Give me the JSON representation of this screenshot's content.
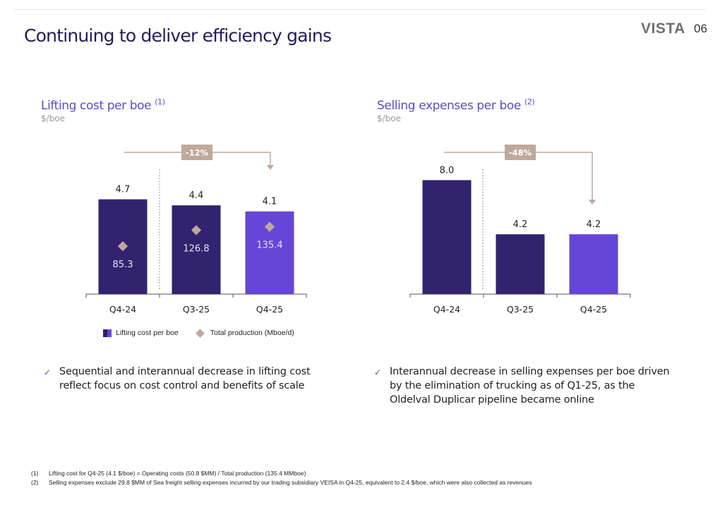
{
  "header": {
    "title": "Continuing to deliver efficiency gains",
    "logo": "VISTA",
    "page_number": "06"
  },
  "colors": {
    "dark_bar": "#32236f",
    "accent_bar": "#6646d6",
    "diamond": "#bfa99a",
    "badge": "#bfa99a",
    "title": "#281a5c",
    "subtitle": "#5b4bc4"
  },
  "chart_data": [
    {
      "type": "bar",
      "title": "Lifting cost per boe",
      "title_footnote": "(1)",
      "unit": "$/boe",
      "categories": [
        "Q4-24",
        "Q3-25",
        "Q4-25"
      ],
      "series": [
        {
          "name": "Lifting cost per boe",
          "values": [
            4.7,
            4.4,
            4.1
          ],
          "value_labels": [
            "4.7",
            "4.4",
            "4.1"
          ]
        },
        {
          "name": "Total production (Mboe/d)",
          "values": [
            85.3,
            126.8,
            135.4
          ],
          "value_labels": [
            "85.3",
            "126.8",
            "135.4"
          ],
          "marker": "diamond"
        }
      ],
      "change_badge": "-12%",
      "change_from": "Q4-24",
      "change_to": "Q4-25",
      "legend": [
        "Lifting cost per boe",
        "Total production (Mboe/d)"
      ],
      "legend_position": "bottom",
      "grid": false
    },
    {
      "type": "bar",
      "title": "Selling expenses per boe",
      "title_footnote": "(2)",
      "unit": "$/boe",
      "categories": [
        "Q4-24",
        "Q3-25",
        "Q4-25"
      ],
      "series": [
        {
          "name": "Selling expenses per boe",
          "values": [
            8.0,
            4.2,
            4.2
          ],
          "value_labels": [
            "8.0",
            "4.2",
            "4.2"
          ]
        }
      ],
      "change_badge": "-48%",
      "change_from": "Q4-24",
      "change_to": "Q4-25",
      "grid": false
    }
  ],
  "bullets": [
    "Sequential and interannual decrease in lifting cost reflect focus on cost control and benefits of scale",
    "Interannual decrease in selling expenses per boe driven by the elimination of trucking as of Q1-25, as the Oldelval Duplicar pipeline became online"
  ],
  "footnotes": [
    {
      "num": "(1)",
      "text": "Lifting cost for Q4-25 (4.1 $/boe) = Operating costs (50.8 $MM) / Total production (135.4 MMboe)"
    },
    {
      "num": "(2)",
      "text": "Selling expenses exclude 29.8 $MM of Sea freight selling expenses incurred by our trading subsidiary VEISA in Q4-25, equivalent to 2.4 $/boe, which were also collected as revenues"
    }
  ]
}
